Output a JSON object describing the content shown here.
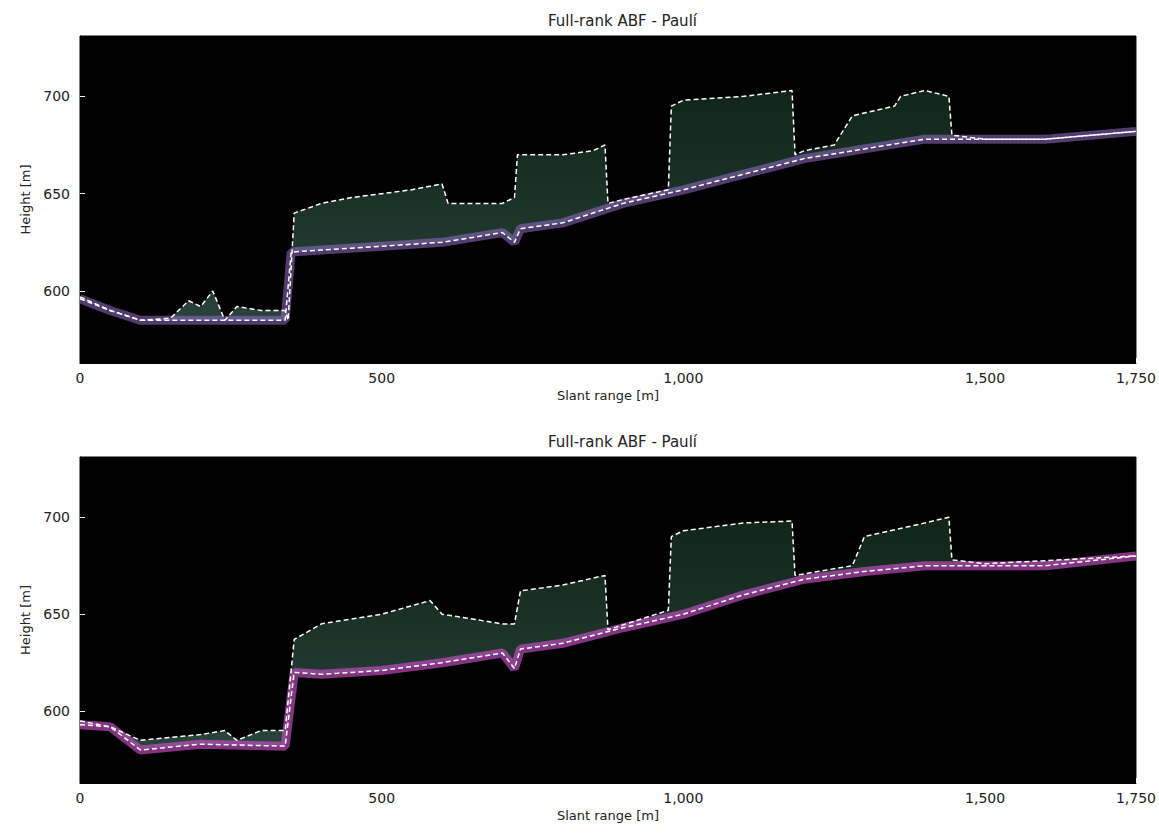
{
  "chart_data": [
    {
      "type": "line",
      "title": "Full-rank ABF - Paulí",
      "x_label": "Slant range [m]",
      "y_label": "Height [m]",
      "xlim": [
        0,
        1750
      ],
      "ylim": [
        563,
        731
      ],
      "xticks": [
        0,
        500,
        1000,
        1500
      ],
      "yticks": [
        600,
        650,
        700
      ],
      "grid": false,
      "series": [
        {
          "color": "#ffffff",
          "line_style": "dashed",
          "x": [
            0,
            50,
            100,
            150,
            180,
            200,
            220,
            240,
            260,
            300,
            340,
            345,
            355,
            400,
            450,
            500,
            550,
            600,
            610,
            700,
            720,
            725,
            800,
            850,
            870,
            875,
            900,
            975,
            980,
            1000,
            1100,
            1180,
            1185,
            1200,
            1250,
            1280,
            1350,
            1360,
            1400,
            1440,
            1445,
            1500,
            1600,
            1750
          ],
          "values": [
            597,
            590,
            585,
            586,
            595,
            592,
            600,
            585,
            592,
            590,
            590,
            585,
            640,
            645,
            648,
            650,
            652,
            655,
            645,
            645,
            648,
            670,
            670,
            672,
            675,
            645,
            647,
            652,
            695,
            698,
            700,
            703,
            670,
            672,
            675,
            690,
            695,
            700,
            703,
            700,
            680,
            678,
            678,
            682
          ]
        },
        {
          "color": "#ffffff",
          "line_style": "dashed",
          "x": [
            0,
            50,
            100,
            200,
            340,
            350,
            400,
            500,
            600,
            700,
            720,
            730,
            800,
            900,
            1000,
            1100,
            1200,
            1300,
            1400,
            1500,
            1600,
            1750
          ],
          "values": [
            596,
            590,
            585,
            585,
            585,
            620,
            621,
            623,
            625,
            630,
            625,
            632,
            635,
            645,
            652,
            660,
            668,
            673,
            678,
            678,
            678,
            682
          ]
        }
      ]
    },
    {
      "type": "line",
      "title": "Full-rank ABF - Paulí",
      "x_label": "Slant range [m]",
      "y_label": "Height [m]",
      "xlim": [
        0,
        1750
      ],
      "ylim": [
        563,
        731
      ],
      "xticks": [
        0,
        500,
        1000,
        1500
      ],
      "yticks": [
        600,
        650,
        700
      ],
      "grid": false,
      "series": [
        {
          "color": "#ffffff",
          "line_style": "dashed",
          "x": [
            0,
            50,
            100,
            200,
            240,
            260,
            300,
            340,
            355,
            400,
            500,
            580,
            600,
            700,
            720,
            730,
            800,
            870,
            875,
            975,
            980,
            1000,
            1100,
            1180,
            1185,
            1280,
            1300,
            1400,
            1440,
            1445,
            1500,
            1750
          ],
          "values": [
            595,
            592,
            585,
            588,
            590,
            585,
            590,
            590,
            637,
            645,
            650,
            657,
            650,
            645,
            645,
            662,
            665,
            670,
            642,
            652,
            690,
            693,
            697,
            698,
            670,
            675,
            690,
            697,
            700,
            678,
            676,
            680
          ]
        },
        {
          "color": "#ffffff",
          "line_style": "dashed",
          "x": [
            0,
            50,
            100,
            200,
            340,
            355,
            400,
            500,
            600,
            700,
            720,
            730,
            800,
            900,
            1000,
            1100,
            1200,
            1300,
            1400,
            1500,
            1600,
            1750
          ],
          "values": [
            593,
            592,
            580,
            583,
            582,
            620,
            619,
            621,
            625,
            630,
            622,
            632,
            635,
            643,
            650,
            660,
            668,
            672,
            675,
            675,
            675,
            680
          ]
        }
      ]
    }
  ]
}
